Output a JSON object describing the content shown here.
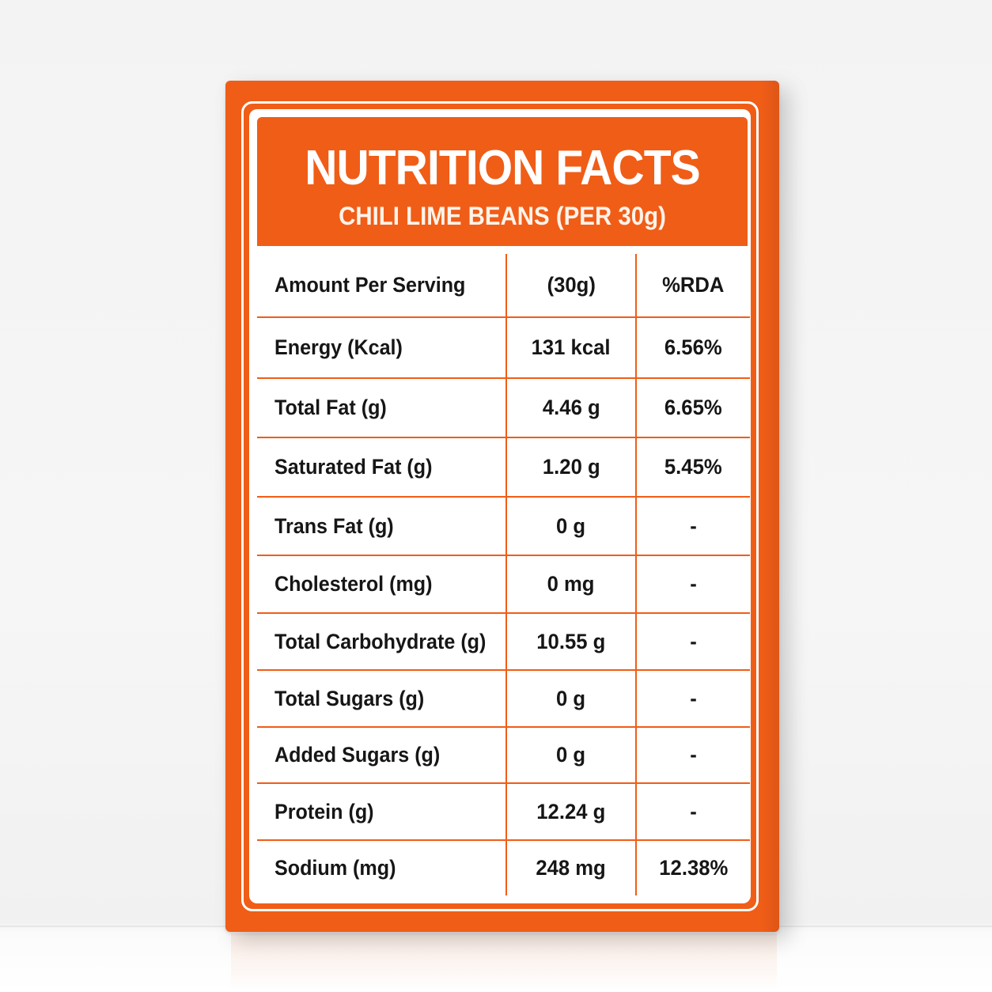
{
  "label": {
    "title": "NUTRITION FACTS",
    "subtitle": "CHILI LIME BEANS (PER 30g)",
    "columns": [
      "Amount Per Serving",
      "(30g)",
      "%RDA"
    ],
    "rows": [
      {
        "name": "Energy (Kcal)",
        "amount": "131 kcal",
        "rda": "6.56%"
      },
      {
        "name": "Total Fat (g)",
        "amount": "4.46 g",
        "rda": "6.65%"
      },
      {
        "name": "Saturated Fat (g)",
        "amount": "1.20 g",
        "rda": "5.45%"
      },
      {
        "name": "Trans Fat (g)",
        "amount": "0 g",
        "rda": "-"
      },
      {
        "name": "Cholesterol (mg)",
        "amount": "0 mg",
        "rda": "-"
      },
      {
        "name": "Total Carbohydrate (g)",
        "amount": "10.55 g",
        "rda": "-"
      },
      {
        "name": "Total Sugars (g)",
        "amount": "0 g",
        "rda": "-"
      },
      {
        "name": "Added Sugars (g)",
        "amount": "0 g",
        "rda": "-"
      },
      {
        "name": "Protein (g)",
        "amount": "12.24 g",
        "rda": "-"
      },
      {
        "name": "Sodium (mg)",
        "amount": "248 mg",
        "rda": "12.38%"
      }
    ]
  },
  "colors": {
    "accent": "#f05d17",
    "text": "#161616",
    "panel": "#ffffff"
  }
}
